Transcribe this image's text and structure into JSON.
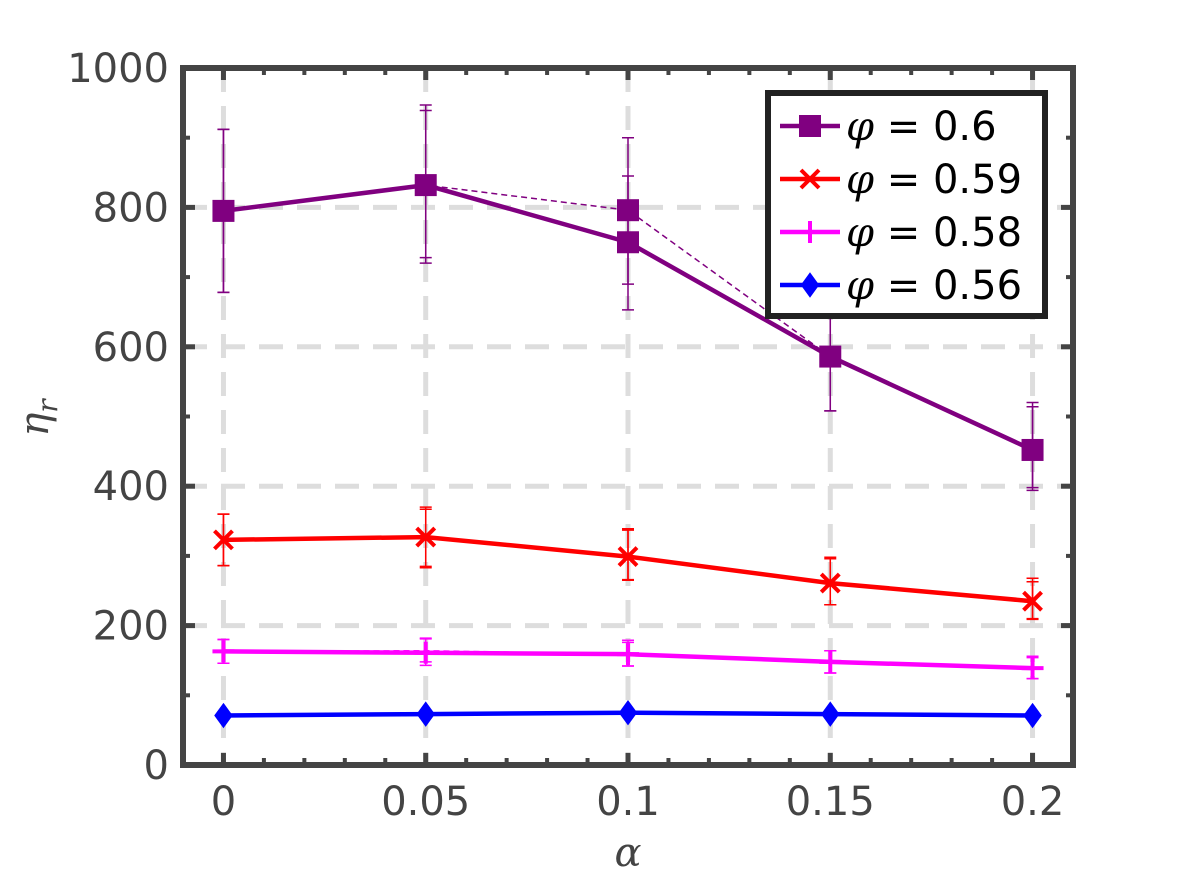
{
  "chart_data": {
    "type": "line",
    "title": "",
    "xlabel": "α",
    "ylabel": "η",
    "ylabel_subscript": "r",
    "x": [
      0,
      0.05,
      0.1,
      0.15,
      0.2
    ],
    "x_tick_labels": [
      "0",
      "0.05",
      "0.1",
      "0.15",
      "0.2"
    ],
    "y_tick_labels": [
      "0",
      "200",
      "400",
      "600",
      "800",
      "1000"
    ],
    "y_ticks": [
      0,
      200,
      400,
      600,
      800,
      1000
    ],
    "xlim": [
      -0.01,
      0.21
    ],
    "ylim": [
      0,
      1000
    ],
    "grid": true,
    "legend_position": "top-right",
    "series": [
      {
        "name": "φ = 0.6",
        "symbol": "φ",
        "label_value": " = 0.6",
        "color": "#800080",
        "marker": "square",
        "values": [
          795,
          832,
          750,
          586,
          452
        ],
        "err_low": [
          117,
          104,
          97,
          78,
          58
        ],
        "err_high": [
          117,
          115,
          95,
          70,
          68
        ],
        "alt_values": [
          795,
          832,
          796,
          586,
          452
        ],
        "alt_err_low": [
          117,
          112,
          106,
          78,
          54
        ],
        "alt_err_high": [
          117,
          107,
          104,
          70,
          62
        ]
      },
      {
        "name": "φ = 0.59",
        "symbol": "φ",
        "label_value": " = 0.59",
        "color": "#ff0000",
        "marker": "x",
        "values": [
          323,
          327,
          299,
          261,
          235
        ],
        "err_low": [
          37,
          42,
          33,
          31,
          26
        ],
        "err_high": [
          37,
          43,
          40,
          37,
          33
        ],
        "alt_values": [
          323,
          327,
          300,
          261,
          233
        ],
        "alt_err_low": [
          37,
          44,
          35,
          31,
          23
        ],
        "alt_err_high": [
          37,
          40,
          37,
          35,
          30
        ]
      },
      {
        "name": "φ = 0.58",
        "symbol": "φ",
        "label_value": " = 0.58",
        "color": "#ff00ff",
        "marker": "plus",
        "values": [
          163,
          161,
          159,
          148,
          139
        ],
        "err_low": [
          17,
          18,
          17,
          16,
          15
        ],
        "err_high": [
          17,
          20,
          20,
          16,
          15
        ],
        "alt_values": [
          163,
          164,
          159,
          147,
          138
        ],
        "alt_err_low": [
          17,
          16,
          17,
          15,
          14
        ],
        "alt_err_high": [
          17,
          18,
          17,
          17,
          18
        ]
      },
      {
        "name": "φ = 0.56",
        "symbol": "φ",
        "label_value": " = 0.56",
        "color": "#0000ff",
        "marker": "diamond",
        "values": [
          71,
          73,
          75,
          73,
          71
        ],
        "err_low": [
          5,
          5,
          5,
          5,
          5
        ],
        "err_high": [
          5,
          5,
          5,
          5,
          5
        ],
        "alt_values": [
          71,
          73,
          75,
          73,
          71
        ],
        "alt_err_low": [
          5,
          5,
          5,
          5,
          5
        ],
        "alt_err_high": [
          5,
          5,
          5,
          5,
          5
        ]
      }
    ]
  }
}
